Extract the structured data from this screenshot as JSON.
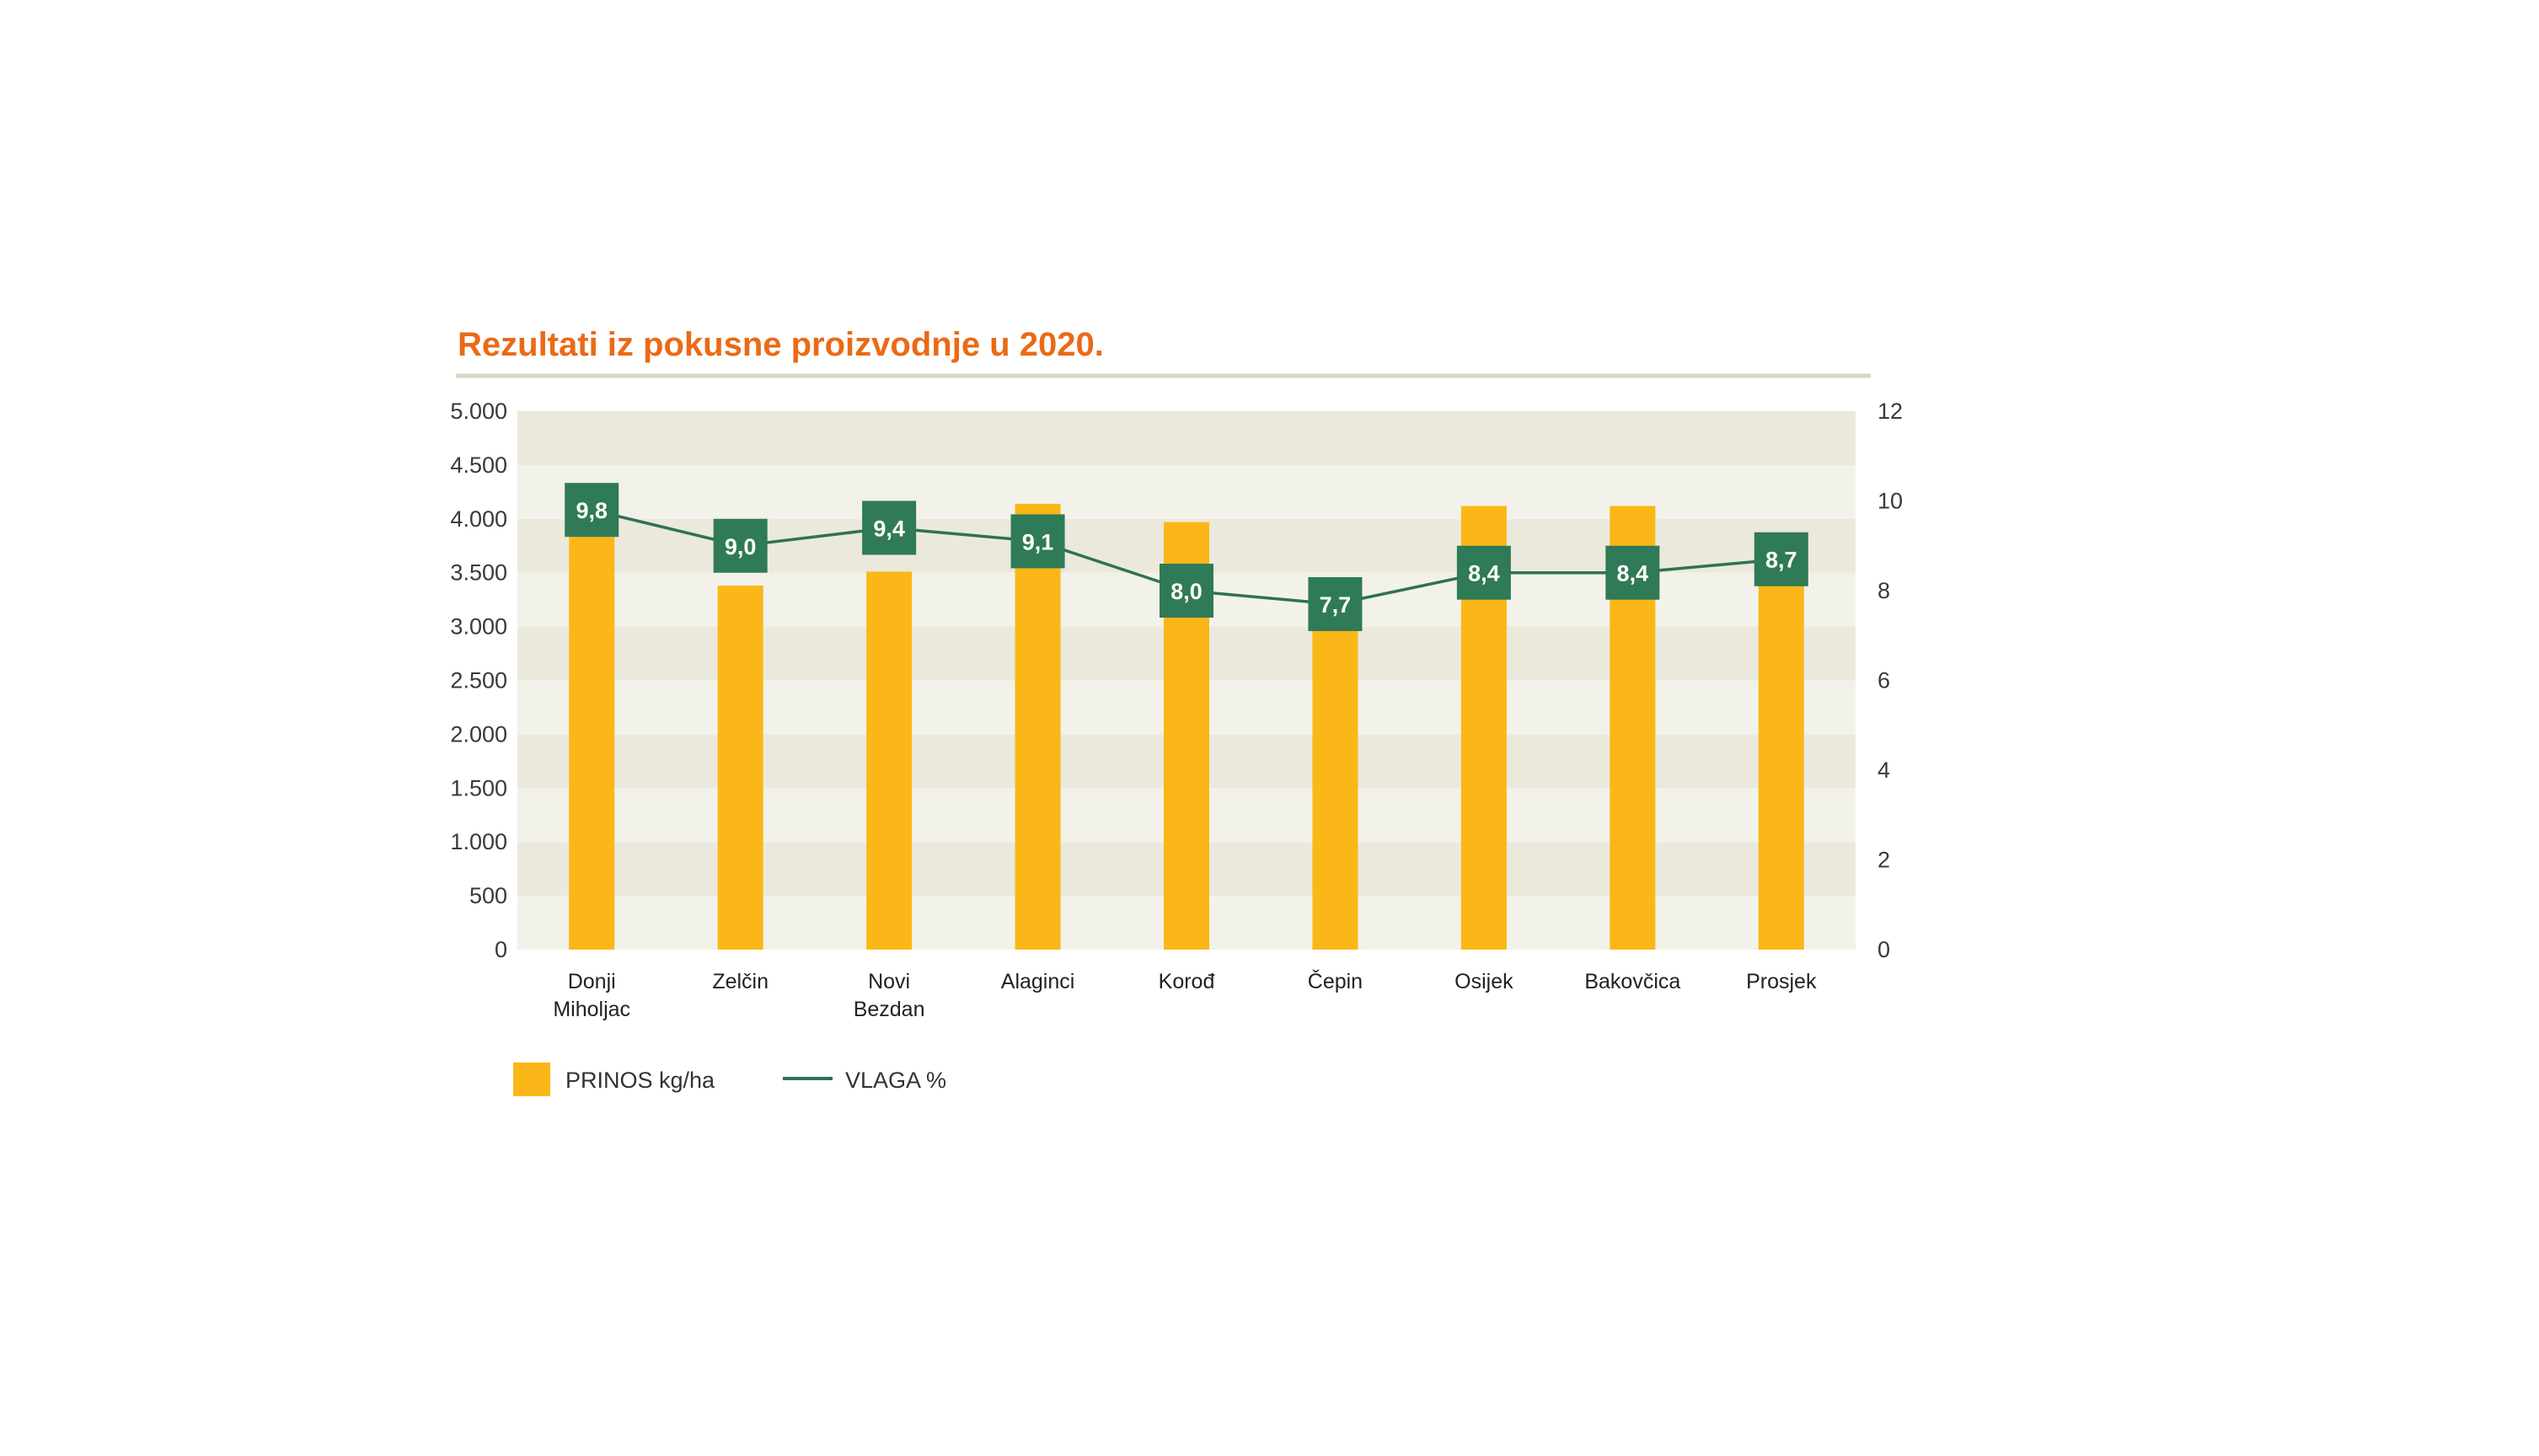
{
  "colors": {
    "title": "#ea6a16",
    "rule": "#d8d6c3",
    "band_dark": "#ebe9dc",
    "band_light": "#f3f2ea",
    "bar": "#fbb717",
    "line": "#2f7252",
    "label_box": "#2f7a57"
  },
  "chart_data": {
    "type": "bar",
    "title": "Rezultati iz pokusne proizvodnje u 2020.",
    "categories": [
      [
        "Donji",
        "Miholjac"
      ],
      [
        "Zelčin"
      ],
      [
        "Novi",
        "Bezdan"
      ],
      [
        "Alaginci"
      ],
      [
        "Korođ"
      ],
      [
        "Čepin"
      ],
      [
        "Osijek"
      ],
      [
        "Bakovčica"
      ],
      [
        "Prosjek"
      ]
    ],
    "series": [
      {
        "name": "PRINOS kg/ha",
        "type": "bar",
        "axis": "left",
        "values": [
          4220,
          3380,
          3510,
          4140,
          3970,
          3250,
          4120,
          4120,
          3840
        ]
      },
      {
        "name": "VLAGA %",
        "type": "line",
        "axis": "right",
        "values": [
          9.8,
          9.0,
          9.4,
          9.1,
          8.0,
          7.7,
          8.4,
          8.4,
          8.7
        ],
        "labels": [
          "9,8",
          "9,0",
          "9,4",
          "9,1",
          "8,0",
          "7,7",
          "8,4",
          "8,4",
          "8,7"
        ]
      }
    ],
    "y_left": {
      "min": 0,
      "max": 5000,
      "ticks": [
        0,
        500,
        1000,
        1500,
        2000,
        2500,
        3000,
        3500,
        4000,
        4500,
        5000
      ],
      "tick_labels": [
        "0",
        "500",
        "1.000",
        "1.500",
        "2.000",
        "2.500",
        "3.000",
        "3.500",
        "4.000",
        "4.500",
        "5.000"
      ]
    },
    "y_right": {
      "min": 0,
      "max": 12,
      "ticks": [
        0,
        2,
        4,
        6,
        8,
        10,
        12
      ],
      "tick_labels": [
        "0",
        "2",
        "4",
        "6",
        "8",
        "10",
        "12"
      ]
    },
    "grid": "alternating horizontal bands",
    "legend": "bottom-left"
  }
}
